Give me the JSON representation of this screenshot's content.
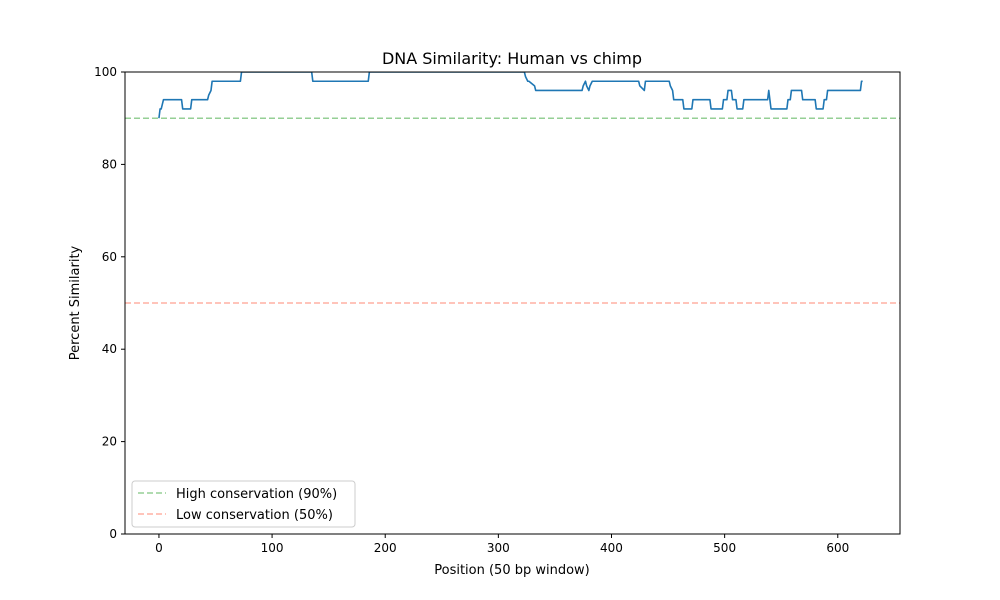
{
  "chart_data": {
    "type": "line",
    "title": "DNA Similarity: Human vs chimp",
    "xlabel": "Position (50 bp window)",
    "ylabel": "Percent Similarity",
    "xlim": [
      -30,
      655
    ],
    "ylim": [
      0,
      100
    ],
    "xticks": [
      0,
      100,
      200,
      300,
      400,
      500,
      600
    ],
    "yticks": [
      0,
      20,
      40,
      60,
      80,
      100
    ],
    "grid": false,
    "legend_placement": "lower-left",
    "series": [
      {
        "color": "#1f77b4",
        "x": [
          0,
          1,
          2,
          3,
          4,
          20,
          21,
          28,
          29,
          43,
          44,
          46,
          47,
          72,
          73,
          135,
          136,
          185,
          186,
          323,
          324,
          326,
          327,
          332,
          333,
          374,
          375,
          377,
          378,
          380,
          381,
          383,
          384,
          424,
          425,
          429,
          430,
          451,
          452,
          454,
          455,
          463,
          464,
          471,
          472,
          487,
          488,
          498,
          499,
          502,
          503,
          506,
          507,
          510,
          511,
          516,
          517,
          538,
          539,
          540,
          541,
          555,
          556,
          558,
          559,
          568,
          569,
          580,
          581,
          587,
          588,
          590,
          591,
          620,
          621,
          622
        ],
        "values": [
          90,
          92,
          92,
          93,
          94,
          94,
          92,
          92,
          94,
          94,
          95,
          96,
          98,
          98,
          100,
          100,
          98,
          98,
          100,
          100,
          99,
          98,
          98,
          97,
          96,
          96,
          97,
          98,
          97,
          96,
          97,
          98,
          98,
          98,
          97,
          96,
          98,
          98,
          97,
          96,
          94,
          94,
          92,
          92,
          94,
          94,
          92,
          92,
          94,
          94,
          96,
          96,
          94,
          94,
          92,
          92,
          94,
          94,
          96,
          94,
          92,
          92,
          94,
          94,
          96,
          96,
          94,
          94,
          92,
          92,
          94,
          94,
          96,
          96,
          98,
          98
        ]
      }
    ],
    "reference_lines": [
      {
        "y": 90,
        "color": "#2ca02c",
        "label": "High conservation (90%)"
      },
      {
        "y": 50,
        "color": "#ff6347",
        "label": "Low conservation (50%)"
      }
    ]
  }
}
